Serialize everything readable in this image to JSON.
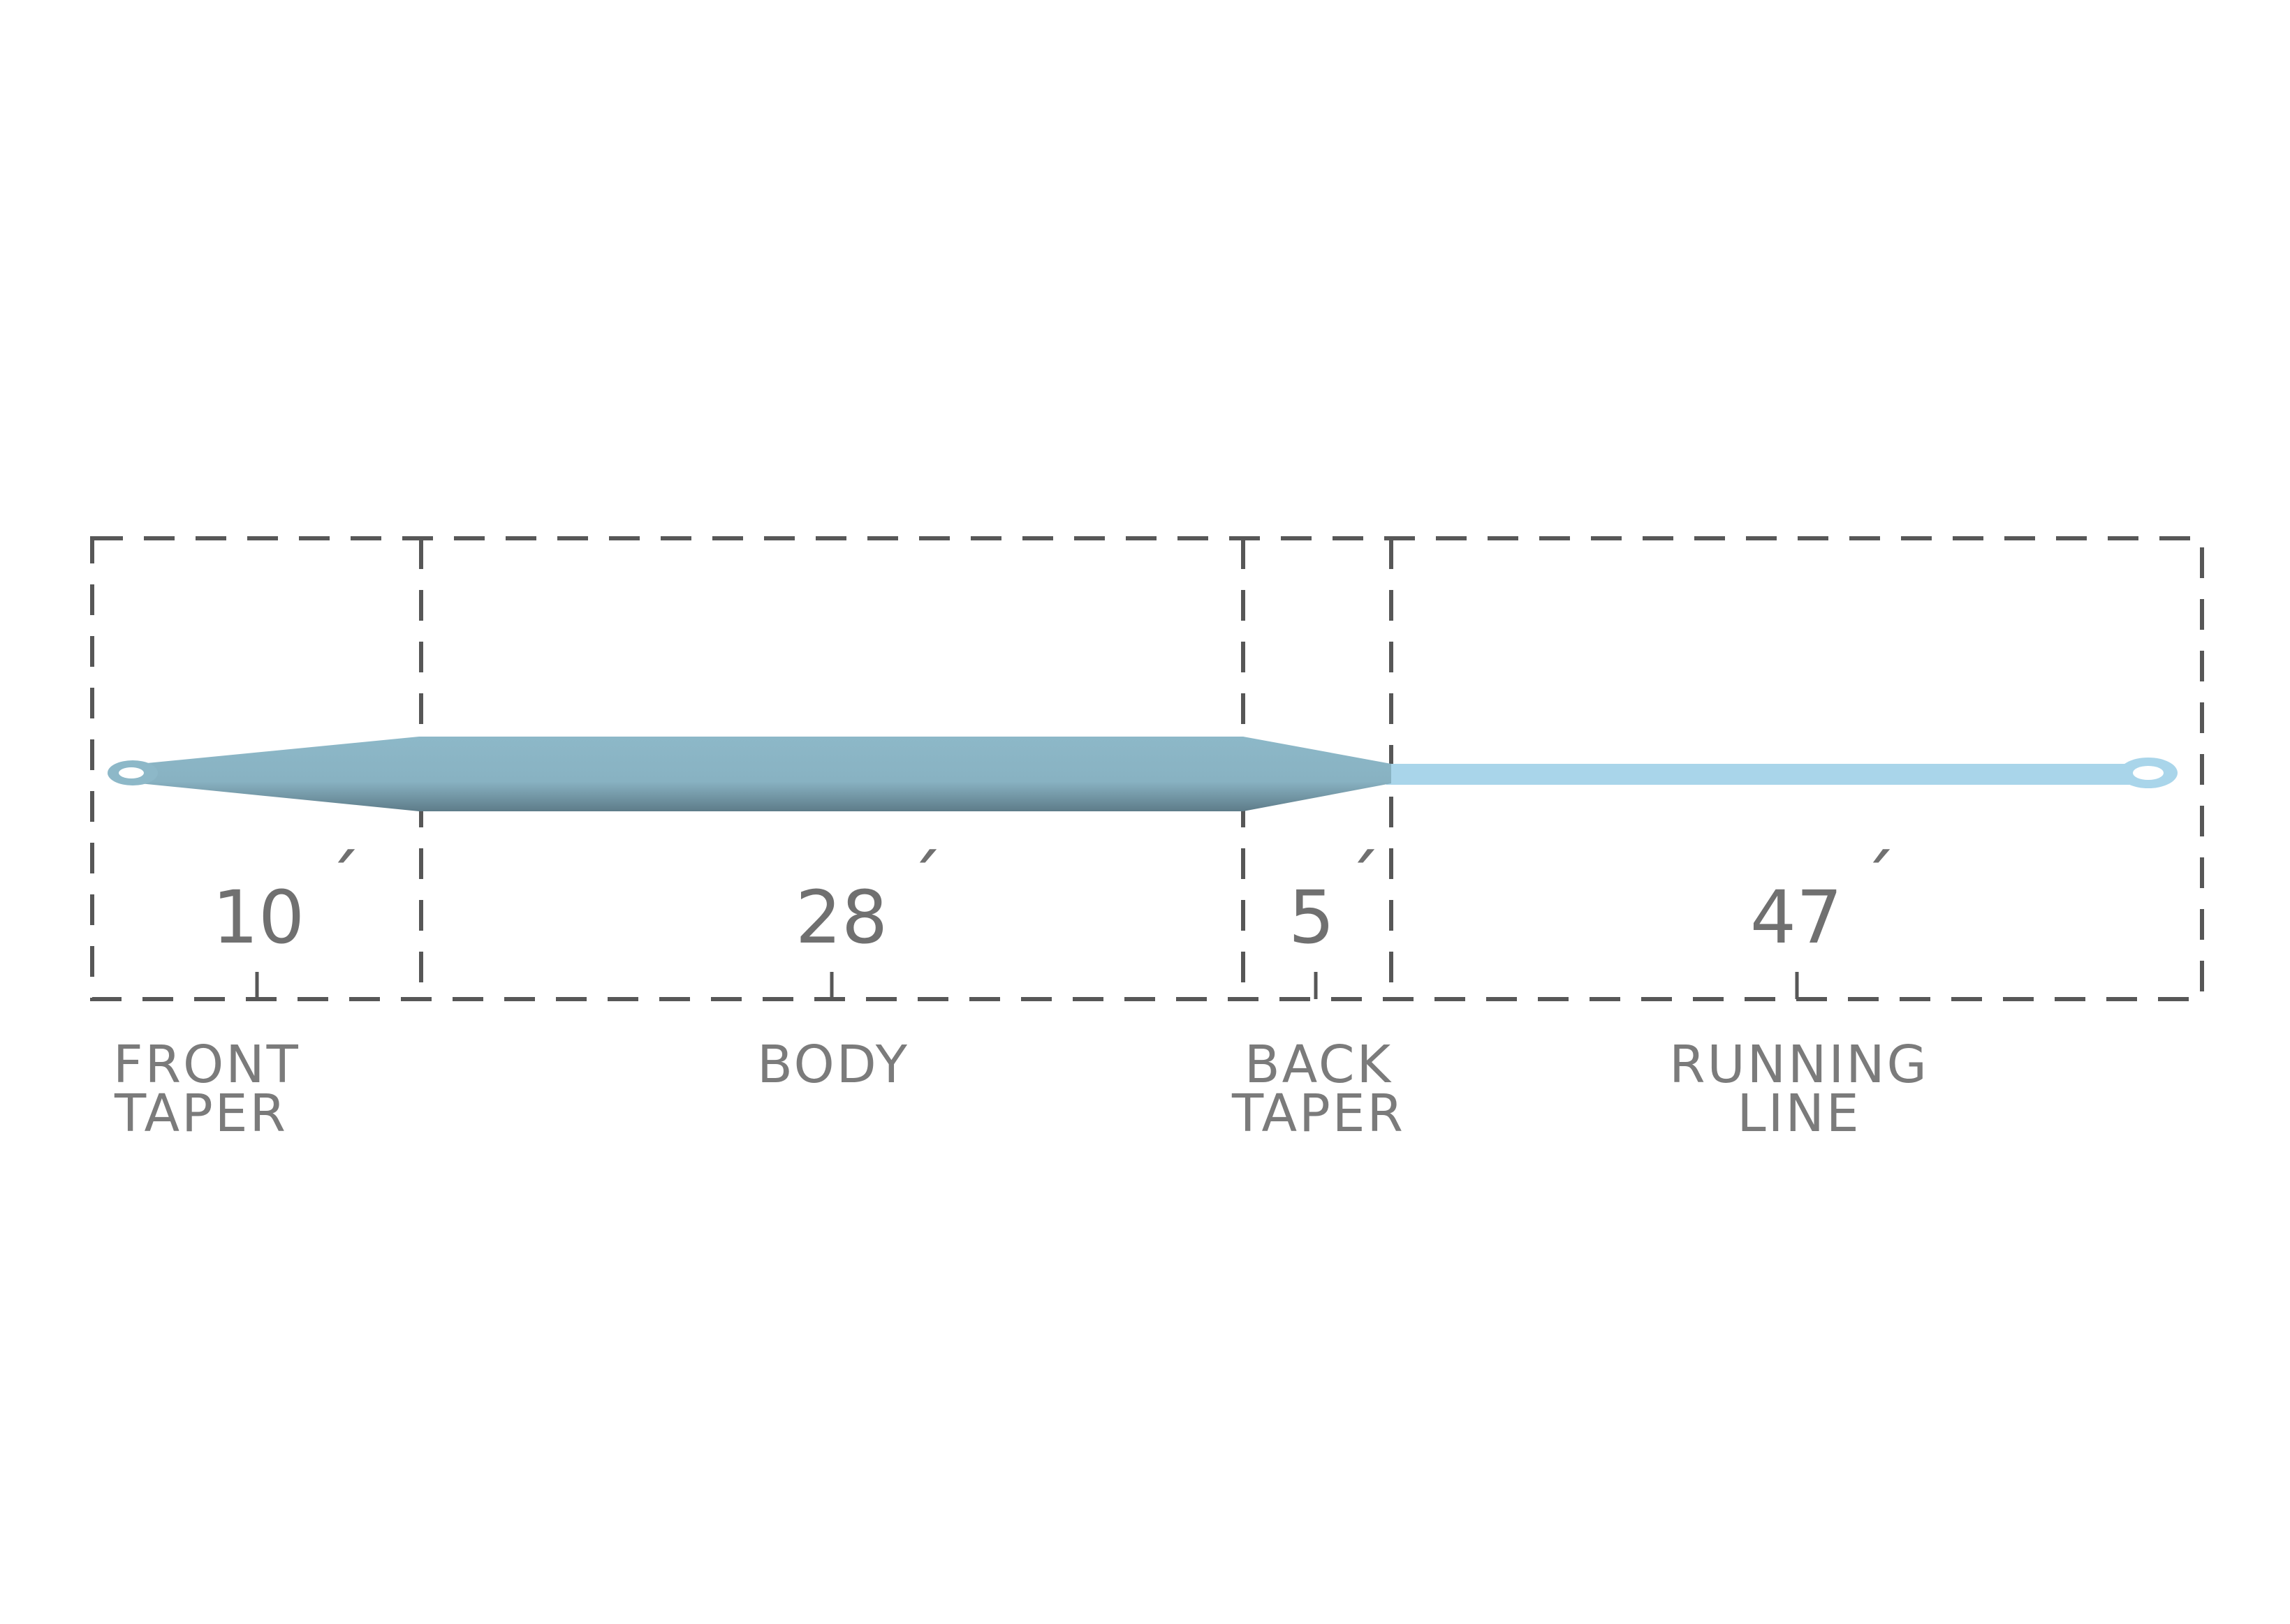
{
  "diagram": {
    "unit_mark": "´",
    "sections": [
      {
        "id": "front-taper",
        "length": "10",
        "label_lines": [
          "FRONT",
          "TAPER"
        ]
      },
      {
        "id": "body",
        "length": "28",
        "label_lines": [
          "BODY"
        ]
      },
      {
        "id": "back-taper",
        "length": "5",
        "label_lines": [
          "BACK",
          "TAPER"
        ]
      },
      {
        "id": "running-line",
        "length": "47",
        "label_lines": [
          "RUNNING",
          "LINE"
        ]
      }
    ],
    "colors": {
      "head": "#8db8c8",
      "head_shadow": "#5e7c89",
      "running_line": "#a9d5ea",
      "text": "#7b7b7b",
      "dashes": "#575757"
    }
  }
}
